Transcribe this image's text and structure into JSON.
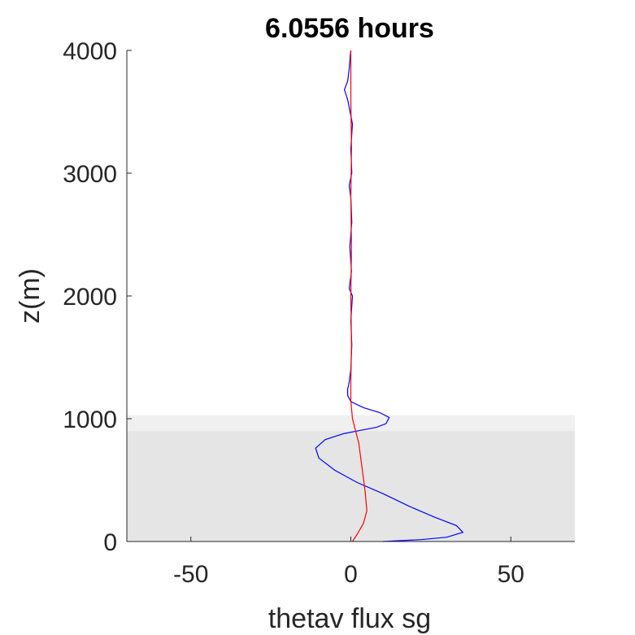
{
  "chart_data": {
    "type": "line",
    "title": "6.0556 hours",
    "xlabel": "thetav flux sg",
    "ylabel": "z(m)",
    "xlim": [
      -70,
      70
    ],
    "ylim": [
      0,
      4000
    ],
    "xticks": [
      -50,
      0,
      50
    ],
    "yticks": [
      0,
      1000,
      2000,
      3000,
      4000
    ],
    "grid": false,
    "legend": "none",
    "shaded_bands": [
      {
        "y_range": [
          0,
          900
        ],
        "color": "#e5e5e5"
      },
      {
        "y_range": [
          900,
          1030
        ],
        "color": "#f0f0f0"
      }
    ],
    "series": [
      {
        "color": "#0000ff",
        "points": [
          [
            10,
            0
          ],
          [
            22,
            15
          ],
          [
            30,
            35
          ],
          [
            35,
            75
          ],
          [
            33,
            130
          ],
          [
            26,
            200
          ],
          [
            18,
            290
          ],
          [
            10,
            390
          ],
          [
            2,
            480
          ],
          [
            -5,
            580
          ],
          [
            -10,
            680
          ],
          [
            -11,
            760
          ],
          [
            -8,
            830
          ],
          [
            -2,
            880
          ],
          [
            3,
            905
          ],
          [
            8,
            930
          ],
          [
            11,
            960
          ],
          [
            12,
            1010
          ],
          [
            9,
            1050
          ],
          [
            4,
            1090
          ],
          [
            0,
            1140
          ],
          [
            -1,
            1190
          ],
          [
            -1,
            1240
          ],
          [
            -0.5,
            1300
          ],
          [
            0,
            1400
          ],
          [
            0.3,
            1600
          ],
          [
            0,
            1800
          ],
          [
            0.5,
            2000
          ],
          [
            -0.5,
            2060
          ],
          [
            0.2,
            2200
          ],
          [
            -0.3,
            2400
          ],
          [
            0.3,
            2600
          ],
          [
            0,
            2800
          ],
          [
            -0.5,
            2900
          ],
          [
            0.3,
            3000
          ],
          [
            0,
            3200
          ],
          [
            0.5,
            3400
          ],
          [
            -1,
            3600
          ],
          [
            -2,
            3680
          ],
          [
            -1,
            3750
          ],
          [
            -0.5,
            3850
          ],
          [
            -0.2,
            3950
          ],
          [
            0,
            4000
          ]
        ]
      },
      {
        "color": "#ff0000",
        "points": [
          [
            0.5,
            0
          ],
          [
            2,
            60
          ],
          [
            4,
            150
          ],
          [
            5,
            250
          ],
          [
            4.5,
            400
          ],
          [
            3.5,
            600
          ],
          [
            2.5,
            800
          ],
          [
            1.5,
            900
          ],
          [
            0.5,
            1000
          ],
          [
            0,
            1150
          ],
          [
            0,
            1300
          ],
          [
            0.2,
            1600
          ],
          [
            0,
            2000
          ],
          [
            0.2,
            2400
          ],
          [
            0,
            2800
          ],
          [
            0.2,
            3200
          ],
          [
            0,
            3600
          ],
          [
            0,
            4000
          ]
        ]
      }
    ]
  }
}
